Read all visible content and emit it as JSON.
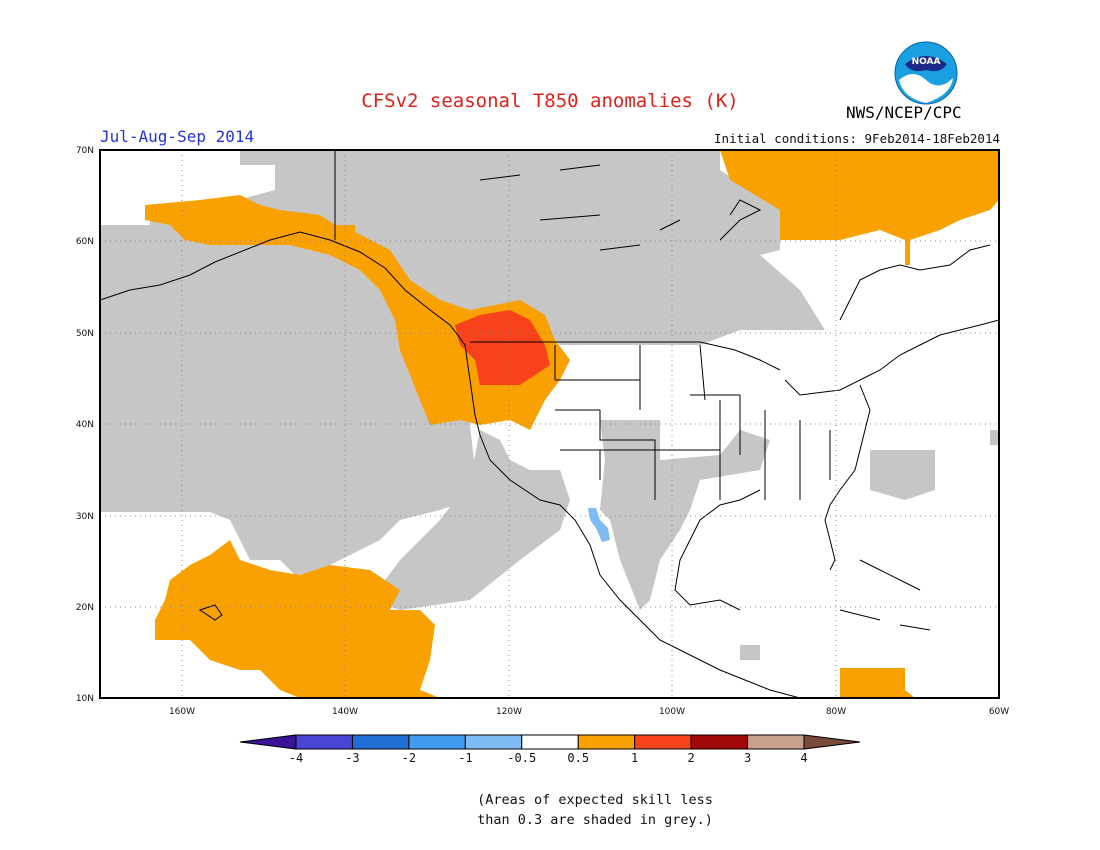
{
  "title": "CFSv2 seasonal T850 anomalies (K)",
  "period": "Jul-Aug-Sep 2014",
  "initial_conditions": "Initial conditions: 9Feb2014-18Feb2014",
  "agency": "NWS/NCEP/CPC",
  "logo_text": "NOAA",
  "map": {
    "lat_ticks": [
      "70N",
      "60N",
      "50N",
      "40N",
      "30N",
      "20N",
      "10N"
    ],
    "lon_ticks": [
      "160W",
      "140W",
      "120W",
      "100W",
      "80W",
      "60W"
    ],
    "region": "North America and Eastern Pacific"
  },
  "colorbar": {
    "labels": [
      "-4",
      "-3",
      "-2",
      "-1",
      "-0.5",
      "0.5",
      "1",
      "2",
      "3",
      "4"
    ],
    "colors": [
      "#3a1396",
      "#4b45d6",
      "#1f6fd6",
      "#3f9cf0",
      "#7fbcf5",
      "#ffffff",
      "#f8a100",
      "#f8421c",
      "#a00a0a",
      "#c8a08c",
      "#7a4a3a"
    ],
    "skill_mask_color": "#c6c6c6"
  },
  "note_lines": [
    "(Areas of expected skill less",
    "than 0.3 are shaded in grey.)"
  ]
}
